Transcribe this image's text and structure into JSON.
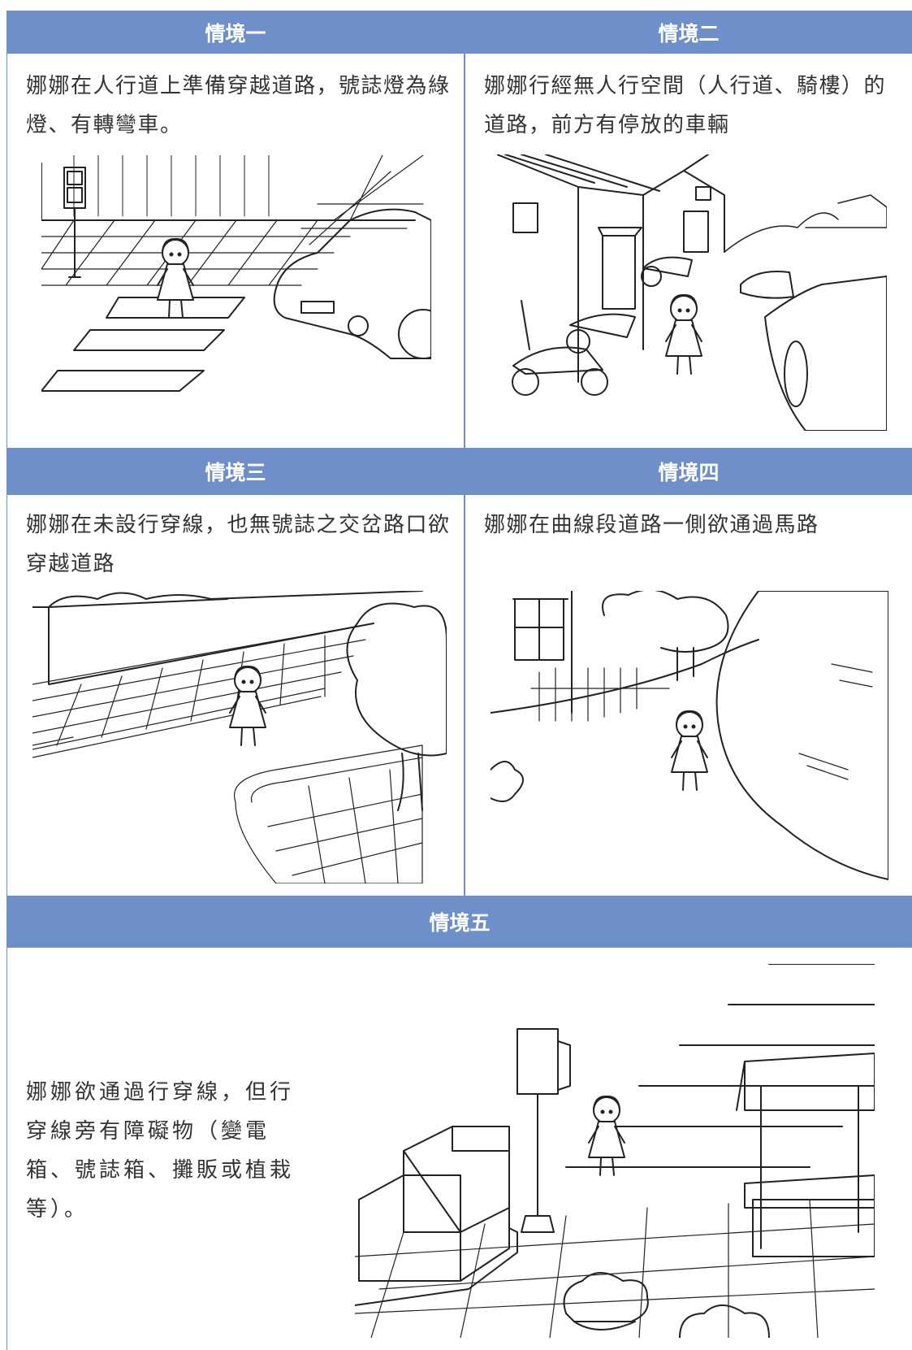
{
  "scenarios": [
    {
      "title": "情境一",
      "text": "娜娜在人行道上準備穿越道路，號誌燈為綠燈、有轉彎車。"
    },
    {
      "title": "情境二",
      "text": "娜娜行經無人行空間（人行道、騎樓）的道路，前方有停放的車輛"
    },
    {
      "title": "情境三",
      "text": "娜娜在未設行穿線，也無號誌之交岔路口欲穿越道路"
    },
    {
      "title": "情境四",
      "text": "娜娜在曲線段道路一側欲通過馬路"
    },
    {
      "title": "情境五",
      "text": "娜娜欲通過行穿線，但行穿線旁有障礙物（變電箱、號誌箱、攤販或植栽等）。"
    }
  ]
}
